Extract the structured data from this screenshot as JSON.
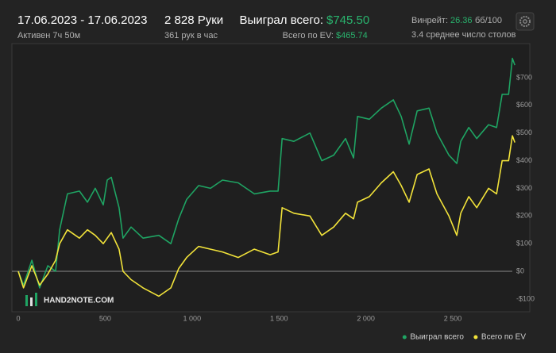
{
  "header": {
    "date_range": "17.06.2023 - 17.06.2023",
    "active": "Активен 7ч 50м",
    "hands": "2 828 Руки",
    "hands_per_hour": "361 рук в час",
    "won_label": "Выиграл всего:",
    "won_value": "$745.50",
    "ev_label": "Всего по EV:",
    "ev_value": "$465.74",
    "winrate_label": "Винрейт:",
    "winrate_value": "26.36",
    "winrate_unit": "бб/100",
    "avg_tables": "3.4 среднее число столов"
  },
  "chart_data": {
    "type": "line",
    "watermark": "HAND2NOTE.COM",
    "x": [
      0,
      30,
      78,
      123,
      170,
      215,
      238,
      283,
      352,
      398,
      443,
      489,
      512,
      535,
      580,
      603,
      649,
      718,
      809,
      878,
      923,
      969,
      1038,
      1106,
      1175,
      1266,
      1358,
      1449,
      1495,
      1518,
      1586,
      1678,
      1746,
      1815,
      1883,
      1929,
      1952,
      2020,
      2089,
      2158,
      2203,
      2249,
      2295,
      2363,
      2409,
      2478,
      2523,
      2546,
      2592,
      2638,
      2706,
      2752,
      2784,
      2821,
      2843,
      2857
    ],
    "series": [
      {
        "name": "Выиграл всего",
        "color": "#1fa463",
        "values": [
          0,
          -50,
          40,
          -60,
          20,
          0,
          150,
          280,
          290,
          250,
          300,
          240,
          330,
          340,
          230,
          120,
          160,
          120,
          130,
          100,
          190,
          260,
          310,
          300,
          330,
          320,
          280,
          290,
          290,
          480,
          470,
          500,
          400,
          420,
          480,
          410,
          560,
          550,
          590,
          620,
          560,
          460,
          580,
          590,
          500,
          420,
          390,
          470,
          520,
          480,
          530,
          520,
          640,
          640,
          770,
          745.5
        ]
      },
      {
        "name": "Всего по EV",
        "color": "#f2e33a",
        "values": [
          0,
          -60,
          20,
          -50,
          -10,
          40,
          100,
          150,
          120,
          150,
          130,
          100,
          120,
          140,
          80,
          0,
          -30,
          -60,
          -90,
          -60,
          10,
          50,
          90,
          80,
          70,
          50,
          80,
          60,
          70,
          230,
          210,
          200,
          130,
          160,
          210,
          190,
          250,
          270,
          320,
          360,
          310,
          250,
          350,
          370,
          280,
          200,
          130,
          210,
          270,
          230,
          300,
          280,
          400,
          400,
          490,
          465.74
        ]
      }
    ],
    "xlim": [
      0,
      2870
    ],
    "ylim": [
      -125,
      825
    ],
    "xticks": [
      0,
      500,
      {
        "value": 1000,
        "label": "1 000"
      },
      {
        "value": 1500,
        "label": "1 500"
      },
      {
        "value": 2000,
        "label": "2 000"
      },
      {
        "value": 2500,
        "label": "2 500"
      }
    ],
    "yticks": [
      {
        "value": -100,
        "label": "-$100"
      },
      {
        "value": 0,
        "label": "$0"
      },
      {
        "value": 100,
        "label": "$100"
      },
      {
        "value": 200,
        "label": "$200"
      },
      {
        "value": 300,
        "label": "$300"
      },
      {
        "value": 400,
        "label": "$400"
      },
      {
        "value": 500,
        "label": "$500"
      },
      {
        "value": 600,
        "label": "$600"
      },
      {
        "value": 700,
        "label": "$700"
      }
    ],
    "zero_line": true,
    "legend": "bottom-right"
  }
}
